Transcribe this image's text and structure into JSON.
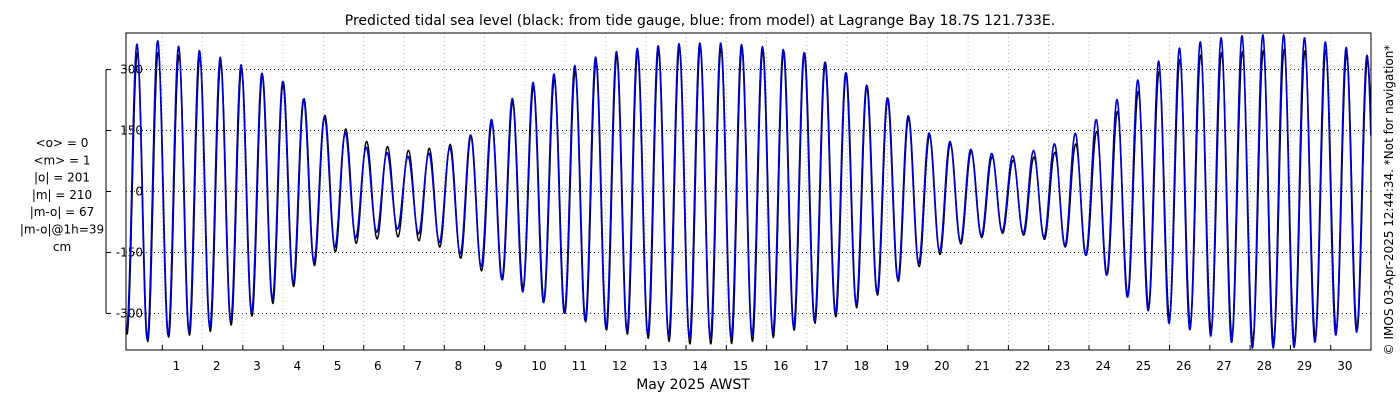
{
  "chart_data": {
    "type": "line",
    "title": "Predicted tidal sea level (black: from tide gauge, blue: from model) at Lagrange Bay 18.7S 121.733E.",
    "xlabel": "May 2025 AWST",
    "ylabel": "",
    "x_unit": "day of May 2025",
    "xlim": [
      0.1,
      31.0
    ],
    "ylim": [
      -390,
      390
    ],
    "yticks": [
      -300,
      -150,
      0,
      150,
      300
    ],
    "xticks": [
      1,
      2,
      3,
      4,
      5,
      6,
      7,
      8,
      9,
      10,
      11,
      12,
      13,
      14,
      15,
      16,
      17,
      18,
      19,
      20,
      21,
      22,
      23,
      24,
      25,
      26,
      27,
      28,
      29,
      30
    ],
    "grid": true,
    "legend": "none",
    "tidal_period_days": 0.5175,
    "series": [
      {
        "color": "#000000",
        "envelope": {
          "day": [
            0.1,
            0.6,
            1.0,
            2.0,
            3.0,
            4.0,
            5.0,
            6.0,
            7.0,
            8.0,
            9.0,
            10.0,
            11.0,
            12.0,
            13.0,
            14.0,
            15.0,
            16.0,
            17.0,
            18.0,
            19.0,
            20.0,
            21.0,
            22.0,
            23.0,
            24.0,
            25.0,
            26.0,
            27.0,
            28.0,
            29.0,
            29.5,
            30.0,
            30.7,
            31.0
          ],
          "high": [
            330,
            350,
            340,
            330,
            300,
            270,
            190,
            125,
            100,
            110,
            150,
            250,
            285,
            330,
            345,
            355,
            355,
            350,
            340,
            290,
            230,
            140,
            100,
            75,
            90,
            130,
            225,
            320,
            340,
            345,
            350,
            345,
            350,
            330,
            320
          ],
          "low": [
            -350,
            -370,
            -360,
            -350,
            -320,
            -260,
            -160,
            -120,
            -110,
            -140,
            -200,
            -240,
            -300,
            -340,
            -360,
            -375,
            -375,
            -365,
            -330,
            -300,
            -240,
            -170,
            -120,
            -100,
            -120,
            -160,
            -260,
            -310,
            -340,
            -370,
            -375,
            -365,
            -340,
            -340,
            -330
          ]
        }
      },
      {
        "color": "#0000cc",
        "envelope": {
          "day": [
            0.1,
            0.6,
            1.0,
            2.0,
            3.0,
            4.0,
            5.0,
            6.0,
            7.0,
            8.0,
            9.0,
            10.0,
            11.0,
            12.0,
            13.0,
            14.0,
            15.0,
            16.0,
            17.0,
            18.0,
            19.0,
            20.0,
            21.0,
            22.0,
            23.0,
            24.0,
            25.0,
            26.0,
            27.0,
            28.0,
            29.0,
            29.5,
            30.0,
            30.7,
            31.0
          ],
          "high": [
            335,
            385,
            365,
            345,
            310,
            270,
            185,
            110,
            85,
            100,
            160,
            260,
            300,
            340,
            355,
            365,
            365,
            355,
            340,
            290,
            230,
            145,
            105,
            85,
            110,
            160,
            255,
            345,
            375,
            385,
            385,
            375,
            365,
            345,
            330
          ],
          "low": [
            -340,
            -365,
            -355,
            -340,
            -310,
            -250,
            -150,
            -105,
            -90,
            -130,
            -190,
            -250,
            -300,
            -335,
            -350,
            -360,
            -360,
            -350,
            -325,
            -290,
            -235,
            -160,
            -115,
            -95,
            -115,
            -160,
            -265,
            -325,
            -355,
            -385,
            -385,
            -375,
            -355,
            -345,
            -335
          ]
        }
      }
    ],
    "stats": [
      "<o> = 0",
      "<m> = 1",
      "|o| = 201",
      "|m| = 210",
      "|m-o| = 67",
      "|m-o|@1h=39",
      "cm"
    ],
    "credit": "© IMOS 03-Apr-2025 12:44:34. *Not for navigation*"
  }
}
